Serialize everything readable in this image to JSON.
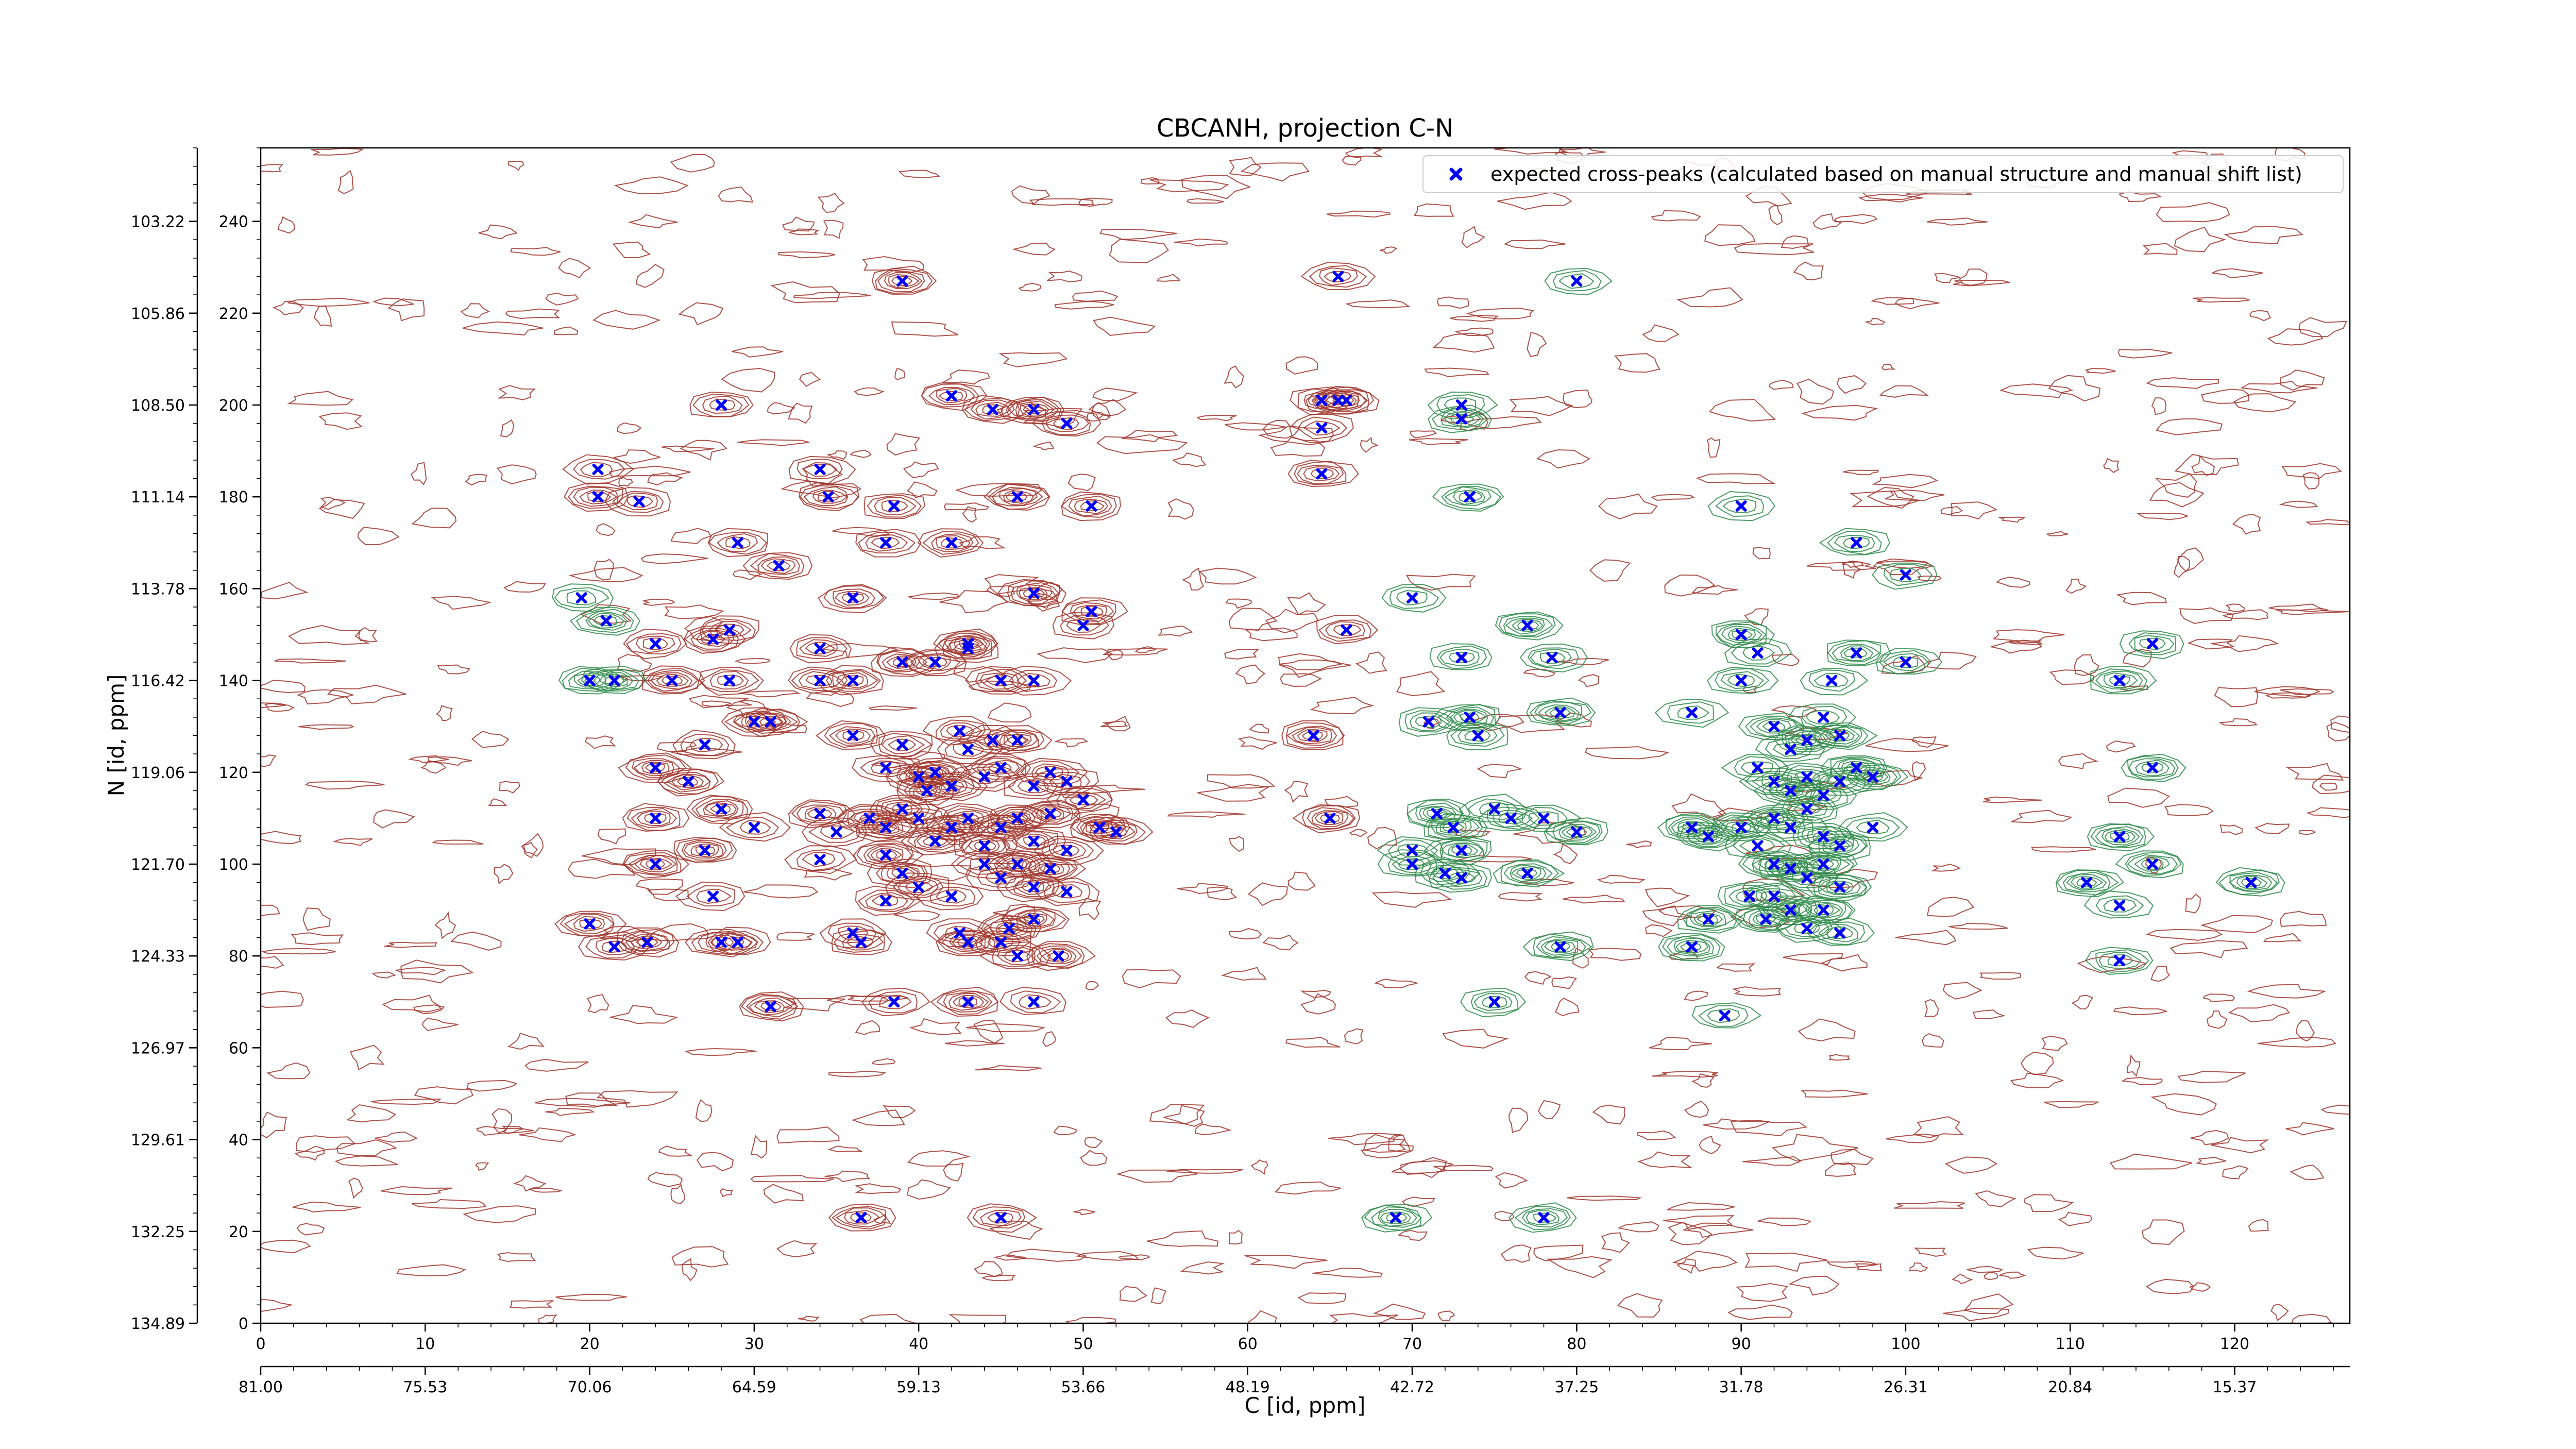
{
  "chart_data": {
    "type": "scatter",
    "title": "CBCANH, projection C-N",
    "xlabel": "C [id, ppm]",
    "ylabel": "N [id, ppm]",
    "x_index_range": [
      0,
      127
    ],
    "y_index_range": [
      0,
      256
    ],
    "x_index_ticks": [
      "0",
      "10",
      "20",
      "30",
      "40",
      "50",
      "60",
      "70",
      "80",
      "90",
      "100",
      "110",
      "120"
    ],
    "x_ppm_ticks": [
      "81.00",
      "75.53",
      "70.06",
      "64.59",
      "59.13",
      "53.66",
      "48.19",
      "42.72",
      "37.25",
      "31.78",
      "26.31",
      "20.84",
      "15.37"
    ],
    "y_index_ticks": [
      "0",
      "20",
      "40",
      "60",
      "80",
      "100",
      "120",
      "140",
      "160",
      "180",
      "200",
      "220",
      "240"
    ],
    "y_ppm_ticks": [
      "134.89",
      "132.25",
      "129.61",
      "126.97",
      "124.33",
      "121.70",
      "119.06",
      "116.42",
      "113.78",
      "111.14",
      "108.50",
      "105.86",
      "103.22"
    ],
    "legend": {
      "entries": [
        "expected cross-peaks (calculated based on manual structure and manual shift list)"
      ],
      "position": "top-right"
    },
    "colors": {
      "positive_contours": "#a0352c",
      "negative_contours": "#2e8b4a",
      "peaks": "#0000ff"
    },
    "series": [
      {
        "name": "expected cross-peaks (calculated based on manual structure and manual shift list)",
        "marker": "x",
        "points": [
          [
            39,
            227
          ],
          [
            65.5,
            228
          ],
          [
            80,
            227
          ],
          [
            42,
            202
          ],
          [
            44.5,
            199
          ],
          [
            47,
            199
          ],
          [
            49,
            196
          ],
          [
            28,
            200
          ],
          [
            64.5,
            201
          ],
          [
            65.5,
            201
          ],
          [
            66,
            201
          ],
          [
            64.5,
            195
          ],
          [
            64.5,
            185
          ],
          [
            73,
            197
          ],
          [
            73,
            200
          ],
          [
            20.5,
            186
          ],
          [
            20.5,
            180
          ],
          [
            23,
            179
          ],
          [
            34,
            186
          ],
          [
            34.5,
            180
          ],
          [
            38.5,
            178
          ],
          [
            46,
            180
          ],
          [
            50.5,
            178
          ],
          [
            73.5,
            180
          ],
          [
            90,
            178
          ],
          [
            97,
            170
          ],
          [
            100,
            163
          ],
          [
            29,
            170
          ],
          [
            31.5,
            165
          ],
          [
            36,
            158
          ],
          [
            38,
            170
          ],
          [
            42,
            170
          ],
          [
            19.5,
            158
          ],
          [
            21,
            153
          ],
          [
            24,
            148
          ],
          [
            27.5,
            149
          ],
          [
            28.5,
            151
          ],
          [
            34,
            147
          ],
          [
            43,
            148
          ],
          [
            47,
            159
          ],
          [
            50.5,
            155
          ],
          [
            50,
            152
          ],
          [
            66,
            151
          ],
          [
            70,
            158
          ],
          [
            77,
            152
          ],
          [
            78.5,
            145
          ],
          [
            20,
            140
          ],
          [
            21.5,
            140
          ],
          [
            25,
            140
          ],
          [
            28.5,
            140
          ],
          [
            31,
            131
          ],
          [
            34,
            140
          ],
          [
            36,
            140
          ],
          [
            39,
            144
          ],
          [
            41,
            144
          ],
          [
            43,
            147
          ],
          [
            45,
            140
          ],
          [
            47,
            140
          ],
          [
            73,
            145
          ],
          [
            73.5,
            132
          ],
          [
            79,
            133
          ],
          [
            87,
            133
          ],
          [
            90,
            150
          ],
          [
            91,
            146
          ],
          [
            90,
            140
          ],
          [
            97,
            146
          ],
          [
            95.5,
            140
          ],
          [
            100,
            144
          ],
          [
            113,
            140
          ],
          [
            115,
            148
          ],
          [
            24,
            121
          ],
          [
            26,
            118
          ],
          [
            27,
            126
          ],
          [
            30,
            131
          ],
          [
            36,
            128
          ],
          [
            38,
            121
          ],
          [
            39,
            126
          ],
          [
            40,
            119
          ],
          [
            40.5,
            116
          ],
          [
            41,
            120
          ],
          [
            42,
            117
          ],
          [
            42.5,
            129
          ],
          [
            43,
            125
          ],
          [
            44,
            119
          ],
          [
            44.5,
            127
          ],
          [
            45,
            121
          ],
          [
            46,
            127
          ],
          [
            47,
            117
          ],
          [
            48,
            120
          ],
          [
            49,
            118
          ],
          [
            50,
            114
          ],
          [
            64,
            128
          ],
          [
            71,
            131
          ],
          [
            74,
            128
          ],
          [
            92,
            130
          ],
          [
            93,
            125
          ],
          [
            94,
            127
          ],
          [
            95,
            132
          ],
          [
            96,
            128
          ],
          [
            91,
            121
          ],
          [
            92,
            118
          ],
          [
            93,
            116
          ],
          [
            94,
            119
          ],
          [
            95,
            115
          ],
          [
            96,
            118
          ],
          [
            97,
            121
          ],
          [
            98,
            119
          ],
          [
            115,
            121
          ],
          [
            24,
            110
          ],
          [
            28,
            112
          ],
          [
            30,
            108
          ],
          [
            34,
            111
          ],
          [
            35,
            107
          ],
          [
            37,
            110
          ],
          [
            38,
            108
          ],
          [
            39,
            112
          ],
          [
            40,
            110
          ],
          [
            41,
            105
          ],
          [
            42,
            108
          ],
          [
            43,
            110
          ],
          [
            44,
            104
          ],
          [
            45,
            108
          ],
          [
            46,
            110
          ],
          [
            47,
            105
          ],
          [
            48,
            111
          ],
          [
            49,
            103
          ],
          [
            51,
            108
          ],
          [
            52,
            107
          ],
          [
            65,
            110
          ],
          [
            70,
            103
          ],
          [
            71.5,
            111
          ],
          [
            72.5,
            108
          ],
          [
            73,
            103
          ],
          [
            75,
            112
          ],
          [
            76,
            110
          ],
          [
            78,
            110
          ],
          [
            80,
            107
          ],
          [
            87,
            108
          ],
          [
            88,
            106
          ],
          [
            90,
            108
          ],
          [
            91,
            104
          ],
          [
            92,
            110
          ],
          [
            93,
            108
          ],
          [
            94,
            112
          ],
          [
            95,
            106
          ],
          [
            96,
            104
          ],
          [
            98,
            108
          ],
          [
            24,
            100
          ],
          [
            27,
            103
          ],
          [
            34,
            101
          ],
          [
            38,
            102
          ],
          [
            39,
            98
          ],
          [
            40,
            95
          ],
          [
            42,
            93
          ],
          [
            44,
            100
          ],
          [
            45,
            97
          ],
          [
            46,
            100
          ],
          [
            47,
            95
          ],
          [
            48,
            99
          ],
          [
            49,
            94
          ],
          [
            70,
            100
          ],
          [
            72,
            98
          ],
          [
            73,
            97
          ],
          [
            77,
            98
          ],
          [
            92,
            100
          ],
          [
            93,
            99
          ],
          [
            94,
            97
          ],
          [
            95,
            100
          ],
          [
            96,
            95
          ],
          [
            111,
            96
          ],
          [
            113,
            106
          ],
          [
            115,
            100
          ],
          [
            121,
            96
          ],
          [
            20,
            87
          ],
          [
            21.5,
            82
          ],
          [
            23.5,
            83
          ],
          [
            27.5,
            93
          ],
          [
            28,
            83
          ],
          [
            29,
            83
          ],
          [
            36,
            85
          ],
          [
            36.5,
            83
          ],
          [
            38,
            92
          ],
          [
            42.5,
            85
          ],
          [
            43,
            83
          ],
          [
            45,
            83
          ],
          [
            45.5,
            86
          ],
          [
            46,
            80
          ],
          [
            47,
            88
          ],
          [
            48.5,
            80
          ],
          [
            88,
            88
          ],
          [
            90.5,
            93
          ],
          [
            91.5,
            88
          ],
          [
            92,
            93
          ],
          [
            93,
            90
          ],
          [
            94,
            86
          ],
          [
            95,
            90
          ],
          [
            96,
            85
          ],
          [
            113,
            91
          ],
          [
            113,
            79
          ],
          [
            79,
            82
          ],
          [
            31,
            69
          ],
          [
            38.5,
            70
          ],
          [
            43,
            70
          ],
          [
            47,
            70
          ],
          [
            75,
            70
          ],
          [
            87,
            82
          ],
          [
            89,
            67
          ],
          [
            36.5,
            23
          ],
          [
            45,
            23
          ],
          [
            69,
            23
          ],
          [
            78,
            23
          ]
        ]
      }
    ]
  }
}
